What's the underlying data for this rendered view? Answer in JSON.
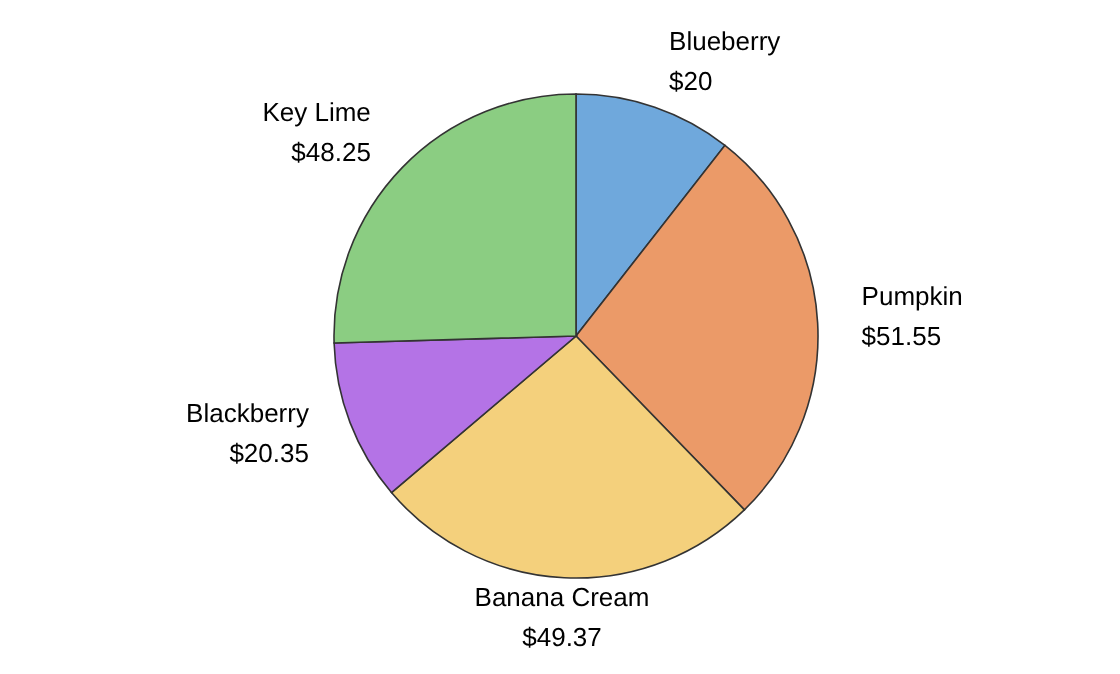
{
  "chart_data": {
    "type": "pie",
    "categories": [
      "Blueberry",
      "Pumpkin",
      "Banana Cream",
      "Blackberry",
      "Key Lime"
    ],
    "values": [
      20,
      51.55,
      49.37,
      20.35,
      48.25
    ],
    "value_labels": [
      "$20",
      "$51.55",
      "$49.37",
      "$20.35",
      "$48.25"
    ],
    "colors": [
      "#6fa8dc",
      "#eb9a68",
      "#f4d07c",
      "#b473e6",
      "#8bcd82"
    ],
    "legend": false
  }
}
